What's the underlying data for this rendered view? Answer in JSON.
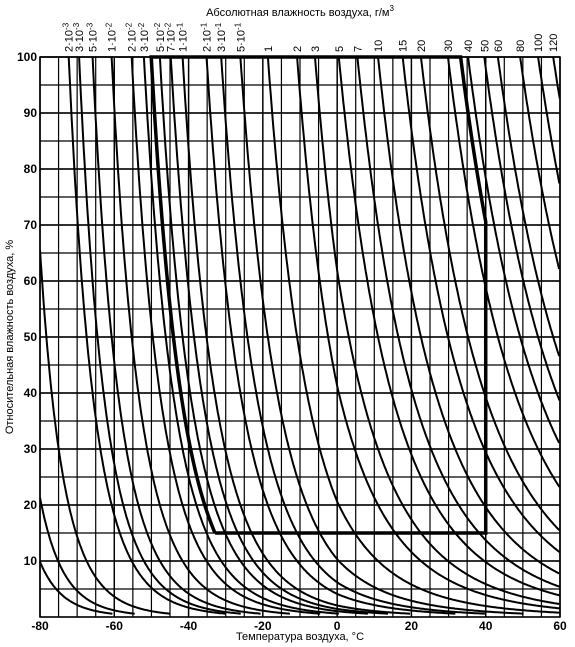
{
  "chart_data": {
    "type": "humidity",
    "top_axis_label": "Абсолютная влажность воздуха, г/м",
    "top_axis_label_sup": "3",
    "xlabel": "Температура воздуха, °C",
    "ylabel": "Относительная влажность воздуха, %",
    "xlim": [
      -80,
      60
    ],
    "ylim": [
      0,
      100
    ],
    "xticks": [
      -80,
      -60,
      -40,
      -20,
      0,
      20,
      40,
      60
    ],
    "yticks": [
      10,
      20,
      30,
      40,
      50,
      60,
      70,
      80,
      90,
      100
    ],
    "grid": true,
    "grid_step": [
      5,
      5
    ],
    "color": "#000000",
    "curves": [
      {
        "value": 6e-05,
        "label": null,
        "exp": null
      },
      {
        "value": 0.00013,
        "label": null,
        "exp": null
      },
      {
        "value": 0.0004,
        "label": null,
        "exp": null
      },
      {
        "value": 0.002,
        "label": "2·10",
        "exp": "-3"
      },
      {
        "value": 0.003,
        "label": "3·10",
        "exp": "-3"
      },
      {
        "value": 0.005,
        "label": "5·10",
        "exp": "-3"
      },
      {
        "value": 0.01,
        "label": "1·10",
        "exp": "-2"
      },
      {
        "value": 0.02,
        "label": "2·10",
        "exp": "-2"
      },
      {
        "value": 0.03,
        "label": "3·10",
        "exp": "-2"
      },
      {
        "value": 0.05,
        "label": "5·10",
        "exp": "-2"
      },
      {
        "value": 0.07,
        "label": "7·10",
        "exp": "-2"
      },
      {
        "value": 0.1,
        "label": "1·10",
        "exp": "-1"
      },
      {
        "value": 0.2,
        "label": "2·10",
        "exp": "-1"
      },
      {
        "value": 0.3,
        "label": "3·10",
        "exp": "-1"
      },
      {
        "value": 0.5,
        "label": "5·10",
        "exp": "-1"
      },
      {
        "value": 1,
        "label": "1",
        "exp": null
      },
      {
        "value": 2,
        "label": "2",
        "exp": null
      },
      {
        "value": 3,
        "label": "3",
        "exp": null
      },
      {
        "value": 5,
        "label": "5",
        "exp": null
      },
      {
        "value": 7,
        "label": "7",
        "exp": null
      },
      {
        "value": 10,
        "label": "10",
        "exp": null
      },
      {
        "value": 15,
        "label": "15",
        "exp": null
      },
      {
        "value": 20,
        "label": "20",
        "exp": null
      },
      {
        "value": 30,
        "label": "30",
        "exp": null
      },
      {
        "value": 40,
        "label": "40",
        "exp": null
      },
      {
        "value": 50,
        "label": "50",
        "exp": null
      },
      {
        "value": 60,
        "label": "60",
        "exp": null
      },
      {
        "value": 80,
        "label": "80",
        "exp": null
      },
      {
        "value": 100,
        "label": "100",
        "exp": null
      },
      {
        "value": 120,
        "label": "120",
        "exp": null
      }
    ],
    "region": {
      "absolute_humidity": [
        0.038,
        36
      ],
      "temperature_max": 40,
      "relative_humidity_min": 15
    }
  }
}
